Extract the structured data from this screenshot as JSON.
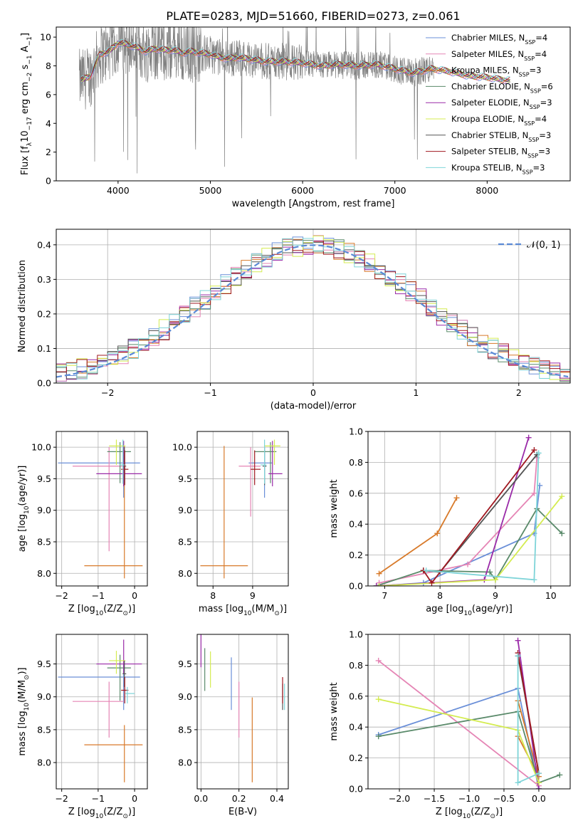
{
  "figure_title": "PLATE=0283, MJD=51660, FIBERID=0273, z=0.061",
  "colors": {
    "Chabrier MILES": "#6a8fd8",
    "Salpeter MILES": "#e585b5",
    "Kroupa MILES": "#d87a2a",
    "Chabrier ELODIE": "#5a8a6a",
    "Salpeter ELODIE": "#9a2aa8",
    "Kroupa ELODIE": "#d4ec50",
    "Chabrier STELIB": "#555555",
    "Salpeter STELIB": "#a01820",
    "Kroupa STELIB": "#7ed4d8",
    "data": "#808080",
    "gaussian": "#5b8ad6"
  },
  "chart_data": [
    {
      "id": "spectrum",
      "type": "line",
      "xlabel": "wavelength [Angstrom, rest frame]",
      "ylabel_parts": [
        "Flux [f",
        "λ",
        "10",
        "−17",
        " erg cm",
        "−2",
        " s",
        "−1",
        " A",
        "−1",
        "]"
      ],
      "xlim": [
        3330,
        8900
      ],
      "ylim": [
        0,
        10.7
      ],
      "xticks": [
        4000,
        5000,
        6000,
        7000,
        8000
      ],
      "yticks": [
        0,
        2,
        4,
        6,
        8,
        10
      ],
      "legend": [
        {
          "label": "Chabrier MILES, N",
          "sub": "SSP",
          "n": "=4"
        },
        {
          "label": "Salpeter MILES, N",
          "sub": "SSP",
          "n": "=4"
        },
        {
          "label": "Kroupa MILES, N",
          "sub": "SSP",
          "n": "=3"
        },
        {
          "label": "Chabrier ELODIE, N",
          "sub": "SSP",
          "n": "=6"
        },
        {
          "label": "Salpeter ELODIE, N",
          "sub": "SSP",
          "n": "=3"
        },
        {
          "label": "Kroupa ELODIE, N",
          "sub": "SSP",
          "n": "=4"
        },
        {
          "label": "Chabrier STELIB, N",
          "sub": "SSP",
          "n": "=3"
        },
        {
          "label": "Salpeter STELIB, N",
          "sub": "SSP",
          "n": "=3"
        },
        {
          "label": "Kroupa STELIB, N",
          "sub": "SSP",
          "n": "=3"
        }
      ],
      "continuum": [
        [
          3600,
          7.0
        ],
        [
          3700,
          7.3
        ],
        [
          3800,
          8.8
        ],
        [
          3900,
          9.0
        ],
        [
          4000,
          9.6
        ],
        [
          4100,
          9.5
        ],
        [
          4200,
          9.3
        ],
        [
          4300,
          9.0
        ],
        [
          4400,
          9.2
        ],
        [
          4500,
          9.1
        ],
        [
          4600,
          9.1
        ],
        [
          4700,
          8.9
        ],
        [
          4800,
          9.0
        ],
        [
          4900,
          8.9
        ],
        [
          5000,
          8.8
        ],
        [
          5100,
          8.6
        ],
        [
          5200,
          8.5
        ],
        [
          5300,
          8.6
        ],
        [
          5400,
          8.5
        ],
        [
          5500,
          8.4
        ],
        [
          5600,
          8.3
        ],
        [
          5800,
          8.3
        ],
        [
          6000,
          8.2
        ],
        [
          6200,
          8.0
        ],
        [
          6400,
          8.1
        ],
        [
          6600,
          8.0
        ],
        [
          6800,
          8.1
        ],
        [
          7000,
          7.8
        ],
        [
          7200,
          7.5
        ],
        [
          7400,
          7.8
        ],
        [
          7600,
          7.6
        ],
        [
          7800,
          7.3
        ],
        [
          8000,
          7.2
        ],
        [
          8200,
          7.0
        ],
        [
          8400,
          6.9
        ],
        [
          8600,
          6.9
        ],
        [
          8800,
          6.7
        ]
      ]
    },
    {
      "id": "residual_hist",
      "type": "histogram",
      "xlabel": "(data-model)/error",
      "ylabel": "Normed distribution",
      "xlim": [
        -2.5,
        2.5
      ],
      "ylim": [
        0,
        0.445
      ],
      "xticks": [
        -2,
        -1,
        0,
        1,
        2
      ],
      "yticks": [
        0.0,
        0.1,
        0.2,
        0.3,
        0.4
      ],
      "legend_label": "𝒩(0, 1)",
      "bin_width": 0.1
    },
    {
      "id": "age_vs_Z",
      "type": "errorbar",
      "xlabel_parts": [
        "Z [log",
        "10",
        "(Z/Z",
        "⊙",
        ")]"
      ],
      "ylabel_parts": [
        "age  [log",
        "10",
        "(age/yr)]"
      ],
      "xlim": [
        -2.15,
        0.35
      ],
      "ylim": [
        7.8,
        10.25
      ],
      "xticks": [
        -2,
        -1,
        0
      ],
      "yticks": [
        8.0,
        8.5,
        9.0,
        9.5,
        10.0
      ],
      "points": [
        {
          "series": "Chabrier MILES",
          "x": -0.3,
          "xerr": [
            1.8,
            0.45
          ],
          "y": 9.75,
          "yerr": [
            0.55,
            0.2
          ]
        },
        {
          "series": "Salpeter MILES",
          "x": -0.7,
          "xerr": [
            1.0,
            0.4
          ],
          "y": 9.7,
          "yerr": [
            1.35,
            0.3
          ]
        },
        {
          "series": "Kroupa MILES",
          "x": -0.28,
          "xerr": [
            1.1,
            0.5
          ],
          "y": 8.12,
          "yerr": [
            0.2,
            1.9
          ]
        },
        {
          "series": "Chabrier ELODIE",
          "x": -0.4,
          "xerr": [
            0.35,
            0.3
          ],
          "y": 9.93,
          "yerr": [
            0.5,
            0.15
          ]
        },
        {
          "series": "Salpeter ELODIE",
          "x": -0.3,
          "xerr": [
            0.75,
            0.5
          ],
          "y": 9.58,
          "yerr": [
            0.2,
            0.52
          ]
        },
        {
          "series": "Kroupa ELODIE",
          "x": -0.5,
          "xerr": [
            0.2,
            0.25
          ],
          "y": 10.02,
          "yerr": [
            0.3,
            0.1
          ]
        },
        {
          "series": "Chabrier STELIB",
          "x": -0.28,
          "xerr": [
            0.05,
            0.05
          ],
          "y": 9.7,
          "yerr": [
            0.3,
            0.3
          ]
        },
        {
          "series": "Salpeter STELIB",
          "x": -0.27,
          "xerr": [
            0.1,
            0.1
          ],
          "y": 9.65,
          "yerr": [
            0.25,
            0.3
          ]
        },
        {
          "series": "Kroupa STELIB",
          "x": -0.32,
          "xerr": [
            0.1,
            0.05
          ],
          "y": 9.72,
          "yerr": [
            0.3,
            0.4
          ]
        }
      ]
    },
    {
      "id": "age_vs_mass",
      "type": "errorbar",
      "xlabel_parts": [
        "mass [log",
        "10",
        "(M/M",
        "⊙",
        ")]"
      ],
      "xlim": [
        7.6,
        9.9
      ],
      "ylim": [
        7.8,
        10.25
      ],
      "xticks": [
        8,
        9
      ],
      "yticks": [
        8.0,
        8.5,
        9.0,
        9.5,
        10.0
      ],
      "points": [
        {
          "series": "Chabrier MILES",
          "x": 9.3,
          "xerr": [
            0.4,
            0.2
          ],
          "y": 9.75,
          "yerr": [
            0.55,
            0.2
          ]
        },
        {
          "series": "Salpeter MILES",
          "x": 8.95,
          "xerr": [
            0.3,
            0.25
          ],
          "y": 9.7,
          "yerr": [
            0.8,
            0.3
          ]
        },
        {
          "series": "Kroupa MILES",
          "x": 8.28,
          "xerr": [
            0.6,
            0.6
          ],
          "y": 8.12,
          "yerr": [
            0.2,
            1.9
          ]
        },
        {
          "series": "Chabrier ELODIE",
          "x": 9.45,
          "xerr": [
            0.4,
            0.15
          ],
          "y": 9.93,
          "yerr": [
            0.5,
            0.15
          ]
        },
        {
          "series": "Salpeter ELODIE",
          "x": 9.5,
          "xerr": [
            0.1,
            0.25
          ],
          "y": 9.58,
          "yerr": [
            0.2,
            0.52
          ]
        },
        {
          "series": "Kroupa ELODIE",
          "x": 9.55,
          "xerr": [
            0.25,
            0.15
          ],
          "y": 10.02,
          "yerr": [
            0.3,
            0.1
          ]
        },
        {
          "series": "Chabrier STELIB",
          "x": 9.3,
          "xerr": [
            0.05,
            0.05
          ],
          "y": 9.7,
          "yerr": [
            0.3,
            0.3
          ]
        },
        {
          "series": "Salpeter STELIB",
          "x": 9.05,
          "xerr": [
            0.1,
            0.15
          ],
          "y": 9.65,
          "yerr": [
            0.25,
            0.3
          ]
        },
        {
          "series": "Kroupa STELIB",
          "x": 9.3,
          "xerr": [
            0.1,
            0.05
          ],
          "y": 9.72,
          "yerr": [
            0.3,
            0.4
          ]
        }
      ]
    },
    {
      "id": "massweight_vs_age",
      "type": "line",
      "xlabel_parts": [
        "age  [log",
        "10",
        "(age/yr)]"
      ],
      "ylabel": "mass weight",
      "xlim": [
        6.7,
        10.35
      ],
      "ylim": [
        0,
        1.0
      ],
      "xticks": [
        7,
        8,
        9,
        10
      ],
      "yticks": [
        0.0,
        0.2,
        0.4,
        0.6,
        0.8,
        1.0
      ],
      "series": [
        {
          "name": "Chabrier MILES",
          "x": [
            6.9,
            7.7,
            9.7,
            9.8
          ],
          "y": [
            0.0,
            0.02,
            0.34,
            0.65
          ]
        },
        {
          "name": "Salpeter MILES",
          "x": [
            6.9,
            8.5,
            9.7,
            9.75
          ],
          "y": [
            0.02,
            0.14,
            0.6,
            0.83
          ]
        },
        {
          "name": "Kroupa MILES",
          "x": [
            6.9,
            7.95,
            8.3
          ],
          "y": [
            0.08,
            0.34,
            0.57
          ]
        },
        {
          "name": "Chabrier ELODIE",
          "x": [
            6.85,
            7.7,
            8.9,
            9.0,
            9.75,
            10.2
          ],
          "y": [
            0.0,
            0.1,
            0.09,
            0.04,
            0.5,
            0.34
          ]
        },
        {
          "name": "Salpeter ELODIE",
          "x": [
            6.85,
            8.8,
            9.6
          ],
          "y": [
            0.0,
            0.04,
            0.96
          ]
        },
        {
          "name": "Kroupa ELODIE",
          "x": [
            6.9,
            9.0,
            10.2
          ],
          "y": [
            0.0,
            0.04,
            0.58
          ]
        },
        {
          "name": "Chabrier STELIB",
          "x": [
            7.7,
            8.0,
            9.75
          ],
          "y": [
            0.1,
            0.09,
            0.85
          ]
        },
        {
          "name": "Salpeter STELIB",
          "x": [
            7.7,
            7.85,
            9.7
          ],
          "y": [
            0.1,
            0.02,
            0.88
          ]
        },
        {
          "name": "Kroupa STELIB",
          "x": [
            7.75,
            9.7,
            9.78
          ],
          "y": [
            0.1,
            0.04,
            0.86
          ]
        }
      ]
    },
    {
      "id": "mass_vs_Z",
      "type": "errorbar",
      "xlabel_parts": [
        "Z [log",
        "10",
        "(Z/Z",
        "⊙",
        ")]"
      ],
      "ylabel_parts": [
        "mass [log",
        "10",
        "(M/M",
        "⊙",
        ")]"
      ],
      "xlim": [
        -2.15,
        0.35
      ],
      "ylim": [
        7.6,
        9.95
      ],
      "xticks": [
        -2,
        -1,
        0
      ],
      "yticks": [
        8.0,
        8.5,
        9.0,
        9.5
      ],
      "points": [
        {
          "series": "Chabrier MILES",
          "x": -0.3,
          "xerr": [
            1.8,
            0.45
          ],
          "y": 9.3,
          "yerr": [
            0.5,
            0.2
          ]
        },
        {
          "series": "Salpeter MILES",
          "x": -0.7,
          "xerr": [
            1.0,
            0.4
          ],
          "y": 8.93,
          "yerr": [
            0.55,
            0.3
          ]
        },
        {
          "series": "Kroupa MILES",
          "x": -0.28,
          "xerr": [
            1.1,
            0.5
          ],
          "y": 8.27,
          "yerr": [
            0.57,
            0.3
          ]
        },
        {
          "series": "Chabrier ELODIE",
          "x": -0.4,
          "xerr": [
            0.35,
            0.3
          ],
          "y": 9.44,
          "yerr": [
            0.5,
            0.2
          ]
        },
        {
          "series": "Salpeter ELODIE",
          "x": -0.3,
          "xerr": [
            0.75,
            0.5
          ],
          "y": 9.5,
          "yerr": [
            0.15,
            0.37
          ]
        },
        {
          "series": "Kroupa ELODIE",
          "x": -0.5,
          "xerr": [
            0.2,
            0.25
          ],
          "y": 9.55,
          "yerr": [
            0.2,
            0.15
          ]
        },
        {
          "series": "Chabrier STELIB",
          "x": -0.28,
          "xerr": [
            0.05,
            0.05
          ],
          "y": 9.35,
          "yerr": [
            0.2,
            0.2
          ]
        },
        {
          "series": "Salpeter STELIB",
          "x": -0.27,
          "xerr": [
            0.1,
            0.1
          ],
          "y": 9.1,
          "yerr": [
            0.2,
            0.2
          ]
        },
        {
          "series": "Kroupa STELIB",
          "x": -0.2,
          "xerr": [
            0.05,
            0.2
          ],
          "y": 9.05,
          "yerr": [
            0.15,
            0.1
          ]
        }
      ]
    },
    {
      "id": "mass_vs_EBV",
      "type": "errorbar",
      "xlabel": "E(B-V)",
      "xlim": [
        -0.02,
        0.46
      ],
      "ylim": [
        7.6,
        9.95
      ],
      "xticks": [
        0.0,
        0.2,
        0.4
      ],
      "yticks": [
        8.0,
        8.5,
        9.0,
        9.5
      ],
      "points": [
        {
          "series": "Chabrier MILES",
          "x": 0.16,
          "y": 9.3,
          "yerr": [
            0.5,
            0.3
          ]
        },
        {
          "series": "Salpeter MILES",
          "x": 0.2,
          "y": 8.93,
          "yerr": [
            0.55,
            0.3
          ]
        },
        {
          "series": "Kroupa MILES",
          "x": 0.27,
          "y": 8.27,
          "yerr": [
            0.57,
            0.72
          ]
        },
        {
          "series": "Chabrier ELODIE",
          "x": 0.02,
          "y": 9.44,
          "yerr": [
            0.35,
            0.3
          ]
        },
        {
          "series": "Salpeter ELODIE",
          "x": 0.0,
          "y": 9.65,
          "yerr": [
            0.2,
            0.3
          ]
        },
        {
          "series": "Kroupa ELODIE",
          "x": 0.05,
          "y": 9.42,
          "yerr": [
            0.28,
            0.27
          ]
        },
        {
          "series": "Chabrier STELIB",
          "x": 0.43,
          "y": 9.0,
          "yerr": [
            0.2,
            0.2
          ]
        },
        {
          "series": "Salpeter STELIB",
          "x": 0.43,
          "y": 9.1,
          "yerr": [
            0.2,
            0.2
          ]
        },
        {
          "series": "Kroupa STELIB",
          "x": 0.44,
          "y": 9.05,
          "yerr": [
            0.25,
            0.15
          ]
        }
      ]
    },
    {
      "id": "massweight_vs_Z",
      "type": "line",
      "xlabel_parts": [
        "Z [log",
        "10",
        "(Z/Z",
        "⊙",
        ")]"
      ],
      "ylabel": "mass weight",
      "xlim": [
        -2.45,
        0.45
      ],
      "ylim": [
        0,
        1.0
      ],
      "xticks": [
        -2.0,
        -1.5,
        -1.0,
        -0.5,
        0.0
      ],
      "yticks": [
        0.0,
        0.2,
        0.4,
        0.6,
        0.8,
        1.0
      ],
      "xtick_labels": [
        "−2.0",
        "−1.5",
        "−1.0",
        "−0.5",
        "0.0"
      ],
      "series": [
        {
          "name": "Chabrier MILES",
          "x": [
            -2.3,
            -0.3,
            0.0
          ],
          "y": [
            0.35,
            0.65,
            0.0
          ]
        },
        {
          "name": "Salpeter MILES",
          "x": [
            -2.3,
            0.0
          ],
          "y": [
            0.83,
            0.02
          ]
        },
        {
          "name": "Kroupa MILES",
          "x": [
            -0.3,
            0.0,
            -0.3
          ],
          "y": [
            0.57,
            0.08,
            0.34
          ]
        },
        {
          "name": "Chabrier ELODIE",
          "x": [
            -2.3,
            -0.3,
            0.0,
            0.3
          ],
          "y": [
            0.34,
            0.5,
            0.04,
            0.09
          ]
        },
        {
          "name": "Salpeter ELODIE",
          "x": [
            -0.3,
            0.0
          ],
          "y": [
            0.96,
            0.0
          ]
        },
        {
          "name": "Kroupa ELODIE",
          "x": [
            -2.3,
            -0.3,
            0.0
          ],
          "y": [
            0.58,
            0.38,
            0.04
          ]
        },
        {
          "name": "Chabrier STELIB",
          "x": [
            -0.3,
            0.0
          ],
          "y": [
            0.86,
            0.1
          ]
        },
        {
          "name": "Salpeter STELIB",
          "x": [
            -0.3,
            0.0
          ],
          "y": [
            0.88,
            0.1
          ]
        },
        {
          "name": "Kroupa STELIB",
          "x": [
            -0.3,
            -0.3,
            0.0
          ],
          "y": [
            0.86,
            0.04,
            0.1
          ]
        }
      ]
    }
  ]
}
